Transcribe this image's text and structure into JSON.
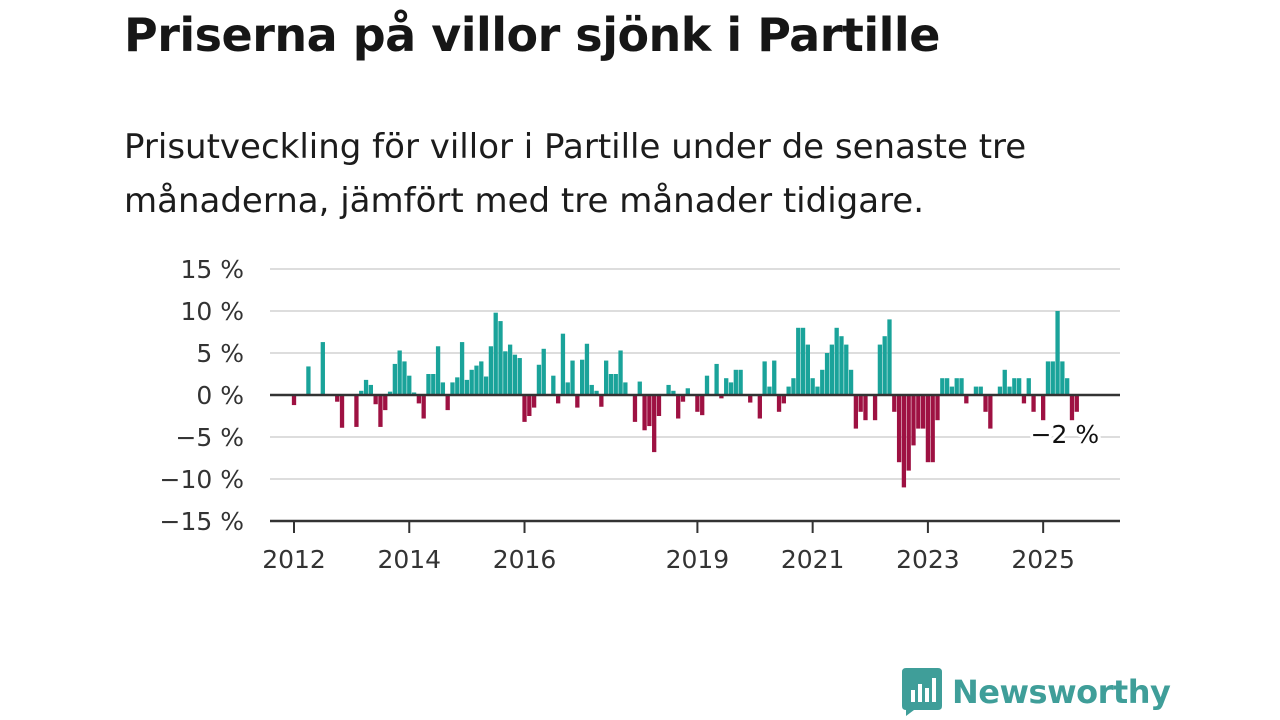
{
  "title": "Priserna på villor sjönk i Partille",
  "subtitle": "Prisutveckling för villor i Partille under de senaste tre månaderna, jämfört med tre månader tidigare.",
  "brand": {
    "name": "Newsworthy",
    "logo_icon": "bar-chart-speech-bubble-icon",
    "color": "#3f9e99"
  },
  "colors": {
    "positive": "#1aa39a",
    "negative": "#9e1142",
    "grid": "#dddddd",
    "axis": "#333333"
  },
  "chart_data": {
    "type": "bar",
    "title": "",
    "xlabel": "",
    "ylabel": "",
    "ylim": [
      -15,
      15
    ],
    "yticks": [
      15,
      10,
      5,
      0,
      -5,
      -10,
      -15
    ],
    "ytick_labels": [
      "15 %",
      "10 %",
      "5 %",
      "0 %",
      "−5 %",
      "−10 %",
      "−15 %"
    ],
    "xticks": [
      {
        "label": "2012",
        "date": "2012-01"
      },
      {
        "label": "2014",
        "date": "2014-01"
      },
      {
        "label": "2016",
        "date": "2016-01"
      },
      {
        "label": "2019",
        "date": "2019-01"
      },
      {
        "label": "2021",
        "date": "2021-01"
      },
      {
        "label": "2023",
        "date": "2023-01"
      },
      {
        "label": "2025",
        "date": "2025-01"
      }
    ],
    "xlim": [
      "2011-08",
      "2026-05"
    ],
    "grid": true,
    "annotation": {
      "text": "−2 %",
      "date": "2025-06",
      "value": -2
    },
    "series": [
      {
        "data": [
          [
            "2012-01",
            -1.2
          ],
          [
            "2012-04",
            3.4
          ],
          [
            "2012-07",
            6.3
          ],
          [
            "2012-10",
            -0.8
          ],
          [
            "2012-11",
            -3.9
          ],
          [
            "2013-02",
            -3.8
          ],
          [
            "2013-03",
            0.5
          ],
          [
            "2013-04",
            1.8
          ],
          [
            "2013-05",
            1.2
          ],
          [
            "2013-06",
            -1.1
          ],
          [
            "2013-07",
            -3.8
          ],
          [
            "2013-08",
            -1.8
          ],
          [
            "2013-09",
            0.4
          ],
          [
            "2013-10",
            3.7
          ],
          [
            "2013-11",
            5.3
          ],
          [
            "2013-12",
            4.0
          ],
          [
            "2014-01",
            2.3
          ],
          [
            "2014-02",
            0.3
          ],
          [
            "2014-03",
            -1.0
          ],
          [
            "2014-04",
            -2.8
          ],
          [
            "2014-05",
            2.5
          ],
          [
            "2014-06",
            2.5
          ],
          [
            "2014-07",
            5.8
          ],
          [
            "2014-08",
            1.5
          ],
          [
            "2014-09",
            -1.8
          ],
          [
            "2014-10",
            1.5
          ],
          [
            "2014-11",
            2.1
          ],
          [
            "2014-12",
            6.3
          ],
          [
            "2015-01",
            1.8
          ],
          [
            "2015-02",
            3.0
          ],
          [
            "2015-03",
            3.5
          ],
          [
            "2015-04",
            4.0
          ],
          [
            "2015-05",
            2.2
          ],
          [
            "2015-06",
            5.8
          ],
          [
            "2015-07",
            9.8
          ],
          [
            "2015-08",
            8.8
          ],
          [
            "2015-09",
            5.2
          ],
          [
            "2015-10",
            6.0
          ],
          [
            "2015-11",
            4.8
          ],
          [
            "2015-12",
            4.4
          ],
          [
            "2016-01",
            -3.2
          ],
          [
            "2016-02",
            -2.5
          ],
          [
            "2016-03",
            -1.5
          ],
          [
            "2016-04",
            3.6
          ],
          [
            "2016-05",
            5.5
          ],
          [
            "2016-07",
            2.3
          ],
          [
            "2016-08",
            -1.0
          ],
          [
            "2016-09",
            7.3
          ],
          [
            "2016-10",
            1.5
          ],
          [
            "2016-11",
            4.1
          ],
          [
            "2016-12",
            -1.5
          ],
          [
            "2017-01",
            4.2
          ],
          [
            "2017-02",
            6.1
          ],
          [
            "2017-03",
            1.2
          ],
          [
            "2017-04",
            0.5
          ],
          [
            "2017-05",
            -1.4
          ],
          [
            "2017-06",
            4.1
          ],
          [
            "2017-07",
            2.5
          ],
          [
            "2017-08",
            2.5
          ],
          [
            "2017-09",
            5.3
          ],
          [
            "2017-10",
            1.5
          ],
          [
            "2017-12",
            -3.2
          ],
          [
            "2018-01",
            1.6
          ],
          [
            "2018-02",
            -4.2
          ],
          [
            "2018-03",
            -3.7
          ],
          [
            "2018-04",
            -6.8
          ],
          [
            "2018-05",
            -2.5
          ],
          [
            "2018-07",
            1.2
          ],
          [
            "2018-08",
            0.5
          ],
          [
            "2018-09",
            -2.8
          ],
          [
            "2018-10",
            -0.8
          ],
          [
            "2018-11",
            0.8
          ],
          [
            "2019-01",
            -2.0
          ],
          [
            "2019-02",
            -2.4
          ],
          [
            "2019-03",
            2.3
          ],
          [
            "2019-05",
            3.7
          ],
          [
            "2019-06",
            -0.4
          ],
          [
            "2019-07",
            2.0
          ],
          [
            "2019-08",
            1.5
          ],
          [
            "2019-09",
            3.0
          ],
          [
            "2019-10",
            3.0
          ],
          [
            "2019-12",
            -0.9
          ],
          [
            "2020-02",
            -2.8
          ],
          [
            "2020-03",
            4.0
          ],
          [
            "2020-04",
            1.0
          ],
          [
            "2020-05",
            4.1
          ],
          [
            "2020-06",
            -2.0
          ],
          [
            "2020-07",
            -1.0
          ],
          [
            "2020-08",
            1.0
          ],
          [
            "2020-09",
            2.0
          ],
          [
            "2020-10",
            8.0
          ],
          [
            "2020-11",
            8.0
          ],
          [
            "2020-12",
            6.0
          ],
          [
            "2021-01",
            2.0
          ],
          [
            "2021-02",
            1.0
          ],
          [
            "2021-03",
            3.0
          ],
          [
            "2021-04",
            5.0
          ],
          [
            "2021-05",
            6.0
          ],
          [
            "2021-06",
            8.0
          ],
          [
            "2021-07",
            7.0
          ],
          [
            "2021-08",
            6.0
          ],
          [
            "2021-09",
            3.0
          ],
          [
            "2021-10",
            -4.0
          ],
          [
            "2021-11",
            -2.0
          ],
          [
            "2021-12",
            -3.0
          ],
          [
            "2022-02",
            -3.0
          ],
          [
            "2022-03",
            6.0
          ],
          [
            "2022-04",
            7.0
          ],
          [
            "2022-05",
            9.0
          ],
          [
            "2022-06",
            -2.0
          ],
          [
            "2022-07",
            -8.0
          ],
          [
            "2022-08",
            -11.0
          ],
          [
            "2022-09",
            -9.0
          ],
          [
            "2022-10",
            -6.0
          ],
          [
            "2022-11",
            -4.0
          ],
          [
            "2022-12",
            -4.0
          ],
          [
            "2023-01",
            -8.0
          ],
          [
            "2023-02",
            -8.0
          ],
          [
            "2023-03",
            -3.0
          ],
          [
            "2023-04",
            2.0
          ],
          [
            "2023-05",
            2.0
          ],
          [
            "2023-06",
            1.0
          ],
          [
            "2023-07",
            2.0
          ],
          [
            "2023-08",
            2.0
          ],
          [
            "2023-09",
            -1.0
          ],
          [
            "2023-11",
            1.0
          ],
          [
            "2023-12",
            1.0
          ],
          [
            "2024-01",
            -2.0
          ],
          [
            "2024-02",
            -4.0
          ],
          [
            "2024-04",
            1.0
          ],
          [
            "2024-05",
            3.0
          ],
          [
            "2024-06",
            1.0
          ],
          [
            "2024-07",
            2.0
          ],
          [
            "2024-08",
            2.0
          ],
          [
            "2024-09",
            -1.0
          ],
          [
            "2024-10",
            2.0
          ],
          [
            "2024-11",
            -2.0
          ],
          [
            "2025-01",
            -3.0
          ],
          [
            "2025-02",
            4.0
          ],
          [
            "2025-03",
            4.0
          ],
          [
            "2025-04",
            10.0
          ],
          [
            "2025-05",
            4.0
          ],
          [
            "2025-06",
            2.0
          ],
          [
            "2025-07",
            -3.0
          ],
          [
            "2025-08",
            -2.0
          ]
        ]
      }
    ]
  }
}
